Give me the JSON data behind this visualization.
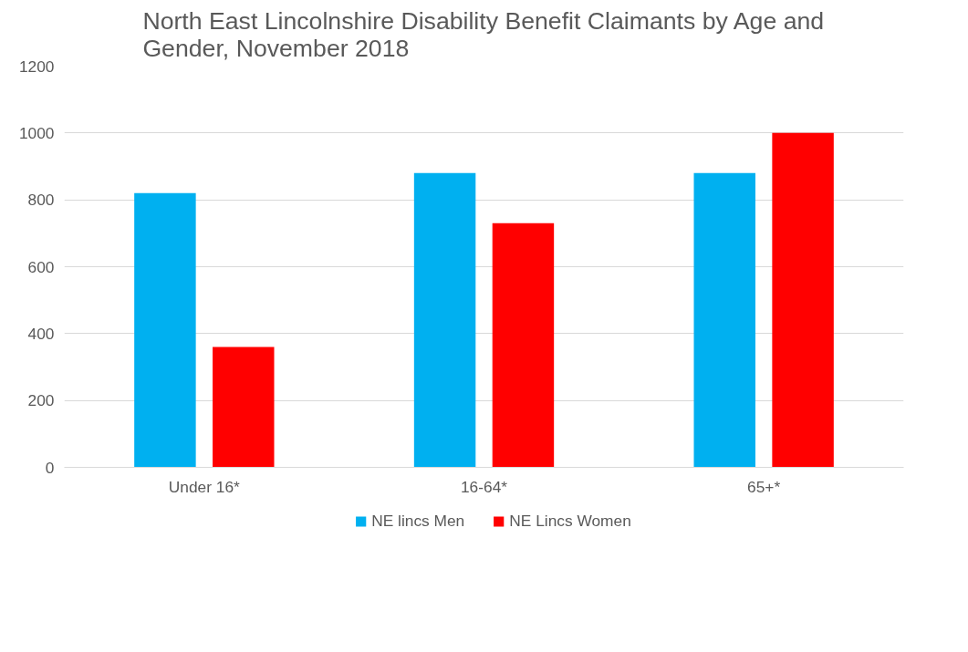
{
  "chart_data": {
    "type": "bar",
    "title": "North East Lincolnshire Disability Benefit Claimants by Age and\nGender, November 2018",
    "categories": [
      "Under 16*",
      "16-64*",
      "65+*"
    ],
    "series": [
      {
        "name": "NE lincs Men",
        "color": "#00b0f0",
        "values": [
          820,
          880,
          880
        ]
      },
      {
        "name": "NE Lincs Women",
        "color": "#ff0000",
        "values": [
          360,
          730,
          1000
        ]
      }
    ],
    "ylim": [
      0,
      1200
    ],
    "yticks": [
      0,
      200,
      400,
      600,
      800,
      1000,
      1200
    ],
    "grid": "y",
    "legend": "bottom"
  }
}
